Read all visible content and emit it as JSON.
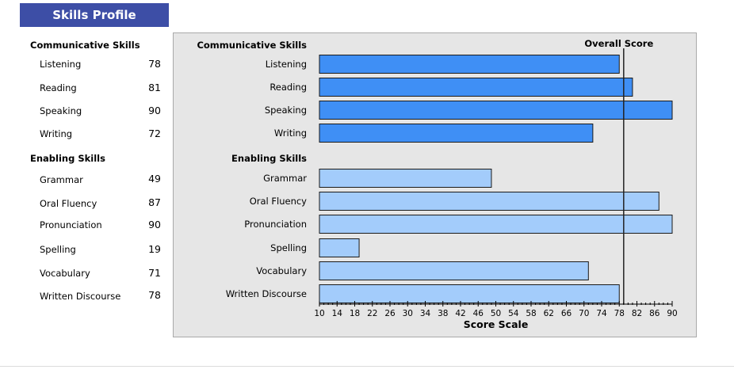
{
  "header": {
    "title": "Skills Profile"
  },
  "colors": {
    "header_bg": "#3d4ea6",
    "communicative_bar": "#3f8ff5",
    "enabling_bar": "#a3ccfb",
    "panel_bg": "#e6e6e6"
  },
  "sidebar": {
    "sections": [
      {
        "title": "Communicative Skills",
        "items": [
          {
            "label": "Listening",
            "value": "78"
          },
          {
            "label": "Reading",
            "value": "81"
          },
          {
            "label": "Speaking",
            "value": "90"
          },
          {
            "label": "Writing",
            "value": "72"
          }
        ]
      },
      {
        "title": "Enabling Skills",
        "items": [
          {
            "label": "Grammar",
            "value": "49"
          },
          {
            "label": "Oral Fluency",
            "value": "87"
          },
          {
            "label": "Pronunciation",
            "value": "90"
          },
          {
            "label": "Spelling",
            "value": "19"
          },
          {
            "label": "Vocabulary",
            "value": "71"
          },
          {
            "label": "Written Discourse",
            "value": "78"
          }
        ]
      }
    ]
  },
  "chart_data": {
    "type": "bar",
    "orientation": "horizontal",
    "xlabel": "Score Scale",
    "xlim": [
      10,
      90
    ],
    "xticks": [
      10,
      14,
      18,
      22,
      26,
      30,
      34,
      38,
      42,
      46,
      50,
      54,
      58,
      62,
      66,
      70,
      74,
      78,
      82,
      86,
      90
    ],
    "groups": [
      {
        "label": "Communicative Skills",
        "categories": [
          "Listening",
          "Reading",
          "Speaking",
          "Writing"
        ],
        "values": [
          78,
          81,
          90,
          72
        ]
      },
      {
        "label": "Enabling Skills",
        "categories": [
          "Grammar",
          "Oral Fluency",
          "Pronunciation",
          "Spelling",
          "Vocabulary",
          "Written Discourse"
        ],
        "values": [
          49,
          87,
          90,
          19,
          71,
          78
        ]
      }
    ],
    "reference_line": {
      "label": "Overall Score",
      "value": 79
    }
  }
}
